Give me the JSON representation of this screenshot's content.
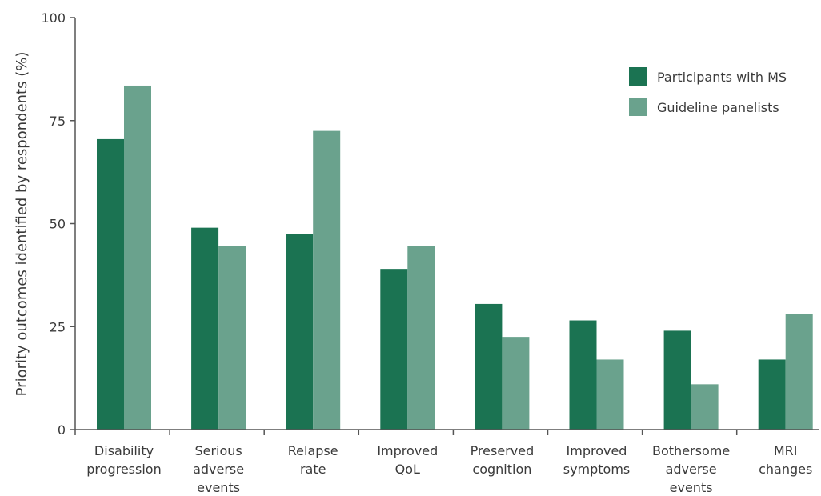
{
  "colors": {
    "series_dark": "#1b7352",
    "series_light": "#6aa28d",
    "axis": "#555555"
  },
  "chart_data": {
    "type": "bar",
    "title": "",
    "xlabel": "",
    "ylabel": "Priority outcomes identified by respondents (%)",
    "ylim": [
      0,
      100
    ],
    "yticks": [
      0,
      25,
      50,
      75,
      100
    ],
    "grid": false,
    "legend_position": "top-right",
    "categories": [
      [
        "Disability",
        "progression"
      ],
      [
        "Serious",
        "adverse",
        "events"
      ],
      [
        "Relapse",
        "rate"
      ],
      [
        "Improved",
        "QoL"
      ],
      [
        "Preserved",
        "cognition"
      ],
      [
        "Improved",
        "symptoms"
      ],
      [
        "Bothersome",
        "adverse",
        "events"
      ],
      [
        "MRI",
        "changes"
      ]
    ],
    "series": [
      {
        "name": "Participants with MS",
        "values": [
          70.5,
          49,
          47.5,
          39,
          30.5,
          26.5,
          24,
          17
        ]
      },
      {
        "name": "Guideline panelists",
        "values": [
          83.5,
          44.5,
          72.5,
          44.5,
          22.5,
          17,
          11,
          28
        ]
      }
    ]
  }
}
